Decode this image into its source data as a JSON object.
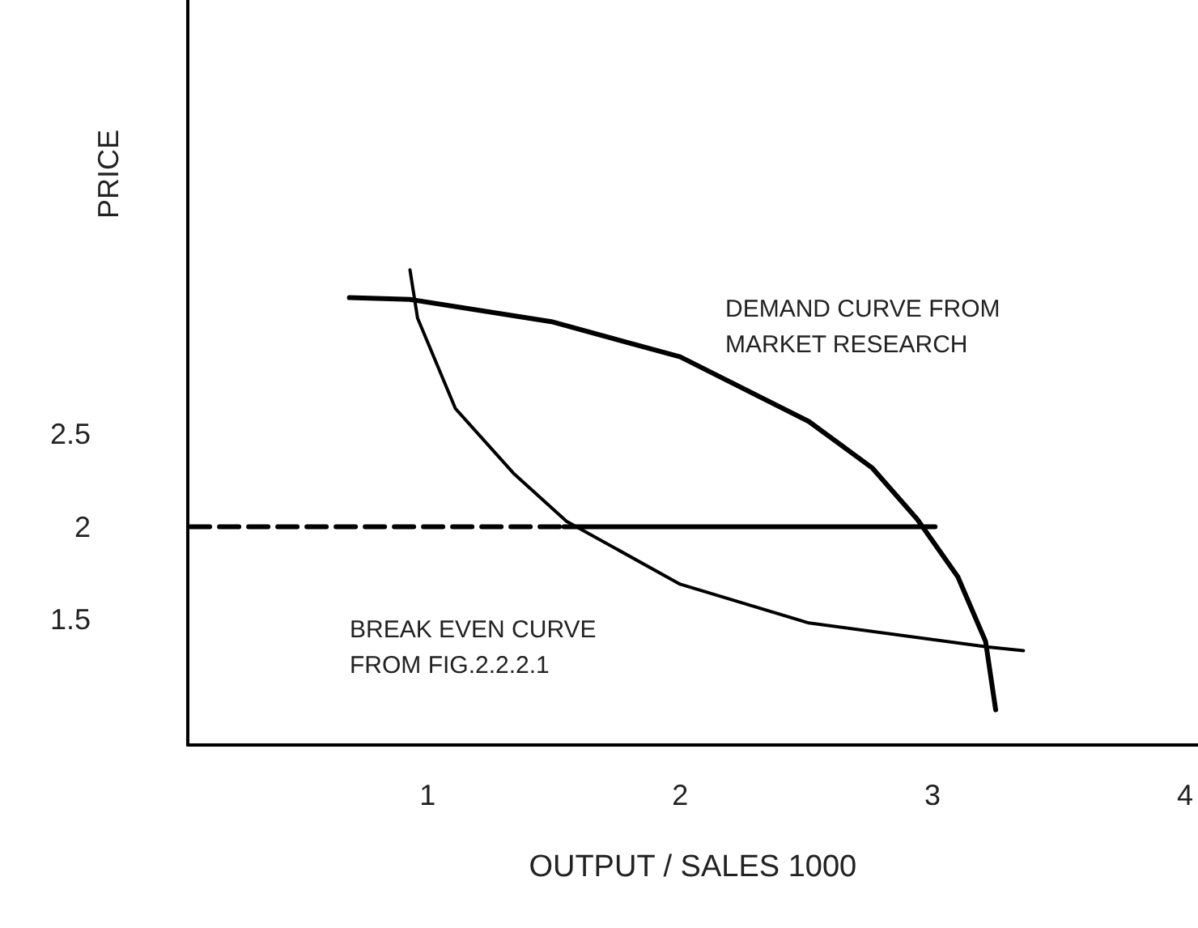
{
  "chart_data": {
    "type": "line",
    "xlabel": "OUTPUT / SALES 1000",
    "ylabel": "PRICE",
    "xlim": [
      0.05,
      4.05
    ],
    "xticks": [
      1,
      2,
      3,
      4
    ],
    "ylim": [
      0.82,
      4.85
    ],
    "yticks": [
      1.5,
      2,
      2.5
    ],
    "grid": false,
    "marker": "none",
    "series": [
      {
        "color": "#000000",
        "x": [
          0.69,
          0.93,
          1.49,
          2.0,
          2.51,
          2.76,
          2.94,
          3.1,
          3.21,
          3.25
        ],
        "values": [
          3.24,
          3.23,
          3.11,
          2.92,
          2.57,
          2.32,
          2.04,
          1.73,
          1.38,
          1.01
        ]
      },
      {
        "color": "#000000",
        "x": [
          0.93,
          0.96,
          1.11,
          1.34,
          1.55,
          2.0,
          2.51,
          3.22,
          3.36
        ],
        "values": [
          3.39,
          3.13,
          2.64,
          2.29,
          2.03,
          1.69,
          1.48,
          1.35,
          1.33
        ]
      },
      {
        "color": "#000000",
        "line_style": "dashed",
        "x": [
          0.06,
          1.54
        ],
        "values": [
          2,
          2
        ]
      },
      {
        "color": "#000000",
        "line_style": "solid",
        "x": [
          1.54,
          3.01
        ],
        "values": [
          2,
          2
        ]
      }
    ],
    "annotations": [
      "DEMAND CURVE FROM\nMARKET RESEARCH",
      "BREAK EVEN CURVE\nFROM FIG.2.2.2.1"
    ]
  }
}
